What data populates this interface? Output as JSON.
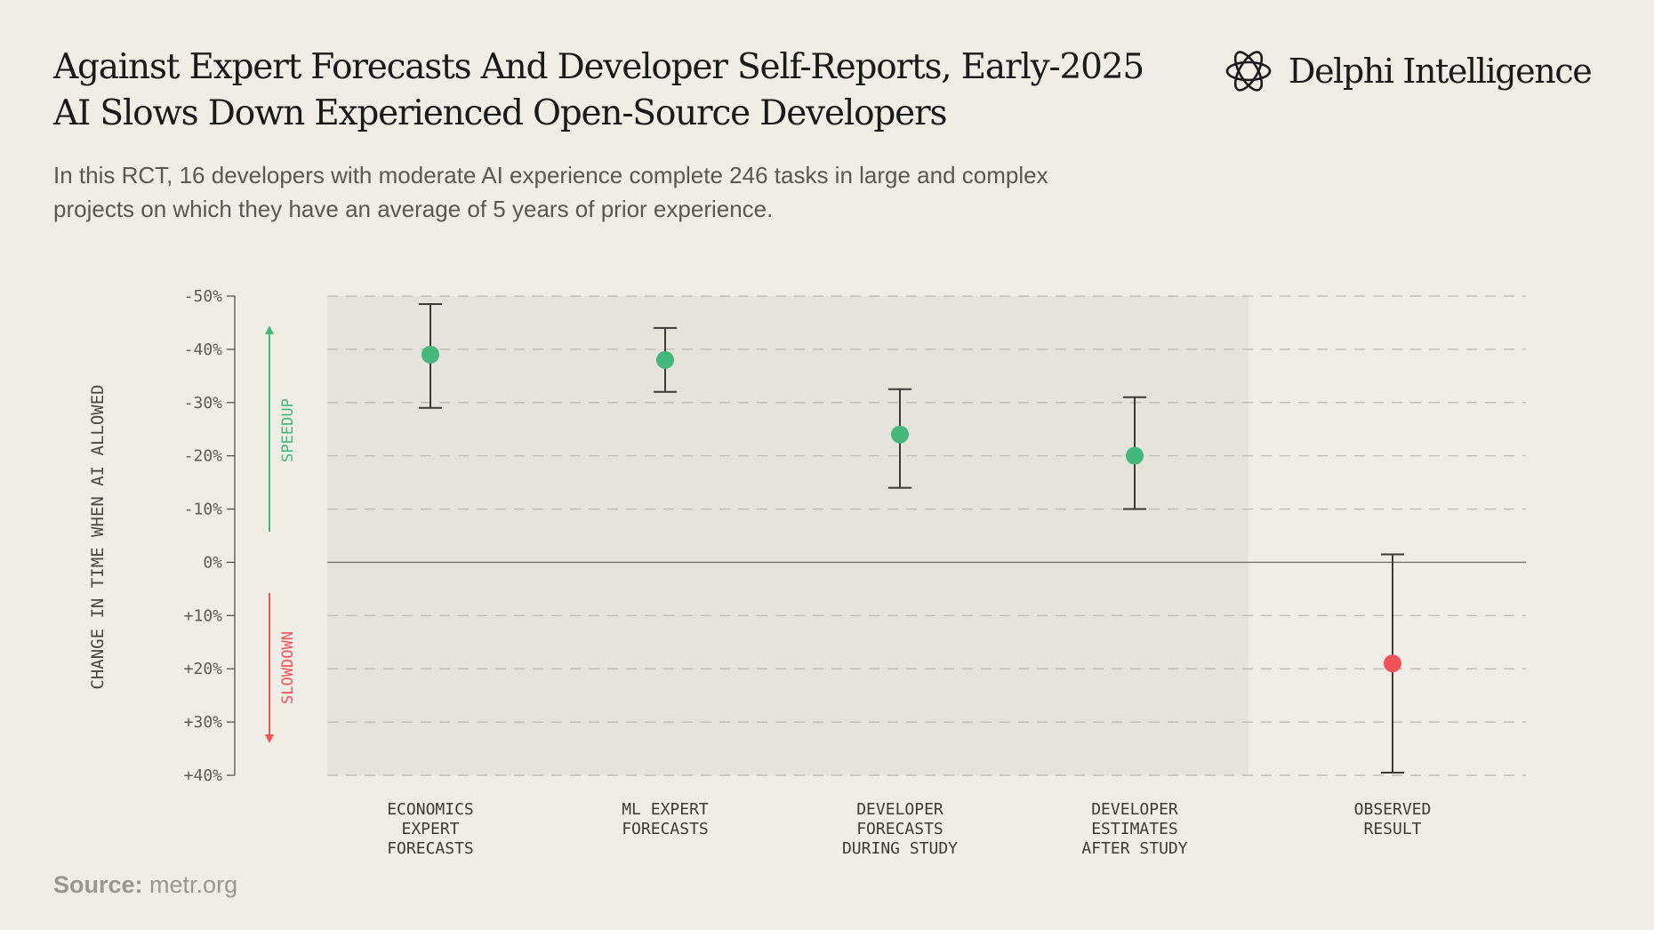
{
  "header": {
    "title": "Against Expert Forecasts And Developer Self-Reports, Early-2025 AI Slows Down Experienced Open-Source Developers",
    "subtitle": "In this RCT, 16 developers with moderate AI experience complete 246 tasks in large and complex projects on which they have an average of 5 years of prior experience."
  },
  "brand": {
    "name": "Delphi Intelligence",
    "icon": "interlocking-rings-logo-icon"
  },
  "footer": {
    "source_label": "Source:",
    "source_value": "metr.org"
  },
  "colors": {
    "speedup": "#44b77b",
    "slowdown": "#f05258",
    "shaded_region": "#e6e2dc",
    "error_bar": "#3c3a38",
    "grid": "#b9b6b0"
  },
  "chart_data": {
    "type": "scatter",
    "ylabel": "CHANGE IN TIME WHEN AI ALLOWED",
    "ylim": [
      -50,
      40
    ],
    "y_inverted": true,
    "yticks": [
      -50,
      -40,
      -30,
      -20,
      -10,
      0,
      10,
      20,
      30,
      40
    ],
    "ytick_labels": [
      "-50%",
      "-40%",
      "-30%",
      "-20%",
      "-10%",
      "0%",
      "+10%",
      "+20%",
      "+30%",
      "+40%"
    ],
    "grid": "horizontal dashed",
    "annotations": [
      {
        "text": "SPEEDUP",
        "direction": "up",
        "color": "#44b77b"
      },
      {
        "text": "SLOWDOWN",
        "direction": "down",
        "color": "#f05258"
      }
    ],
    "shaded_categories": 4,
    "categories": [
      "ECONOMICS\nEXPERT\nFORECASTS",
      "ML EXPERT\nFORECASTS",
      "DEVELOPER\nFORECASTS\nDURING STUDY",
      "DEVELOPER\nESTIMATES\nAFTER STUDY",
      "OBSERVED\nRESULT"
    ],
    "values": [
      -39,
      -38,
      -24,
      -20,
      19
    ],
    "error_low": [
      -48.5,
      -44,
      -32.5,
      -31,
      -1.5
    ],
    "error_high": [
      -29,
      -32,
      -14,
      -10,
      39.5
    ],
    "point_colors": [
      "#44b77b",
      "#44b77b",
      "#44b77b",
      "#44b77b",
      "#f05258"
    ]
  }
}
